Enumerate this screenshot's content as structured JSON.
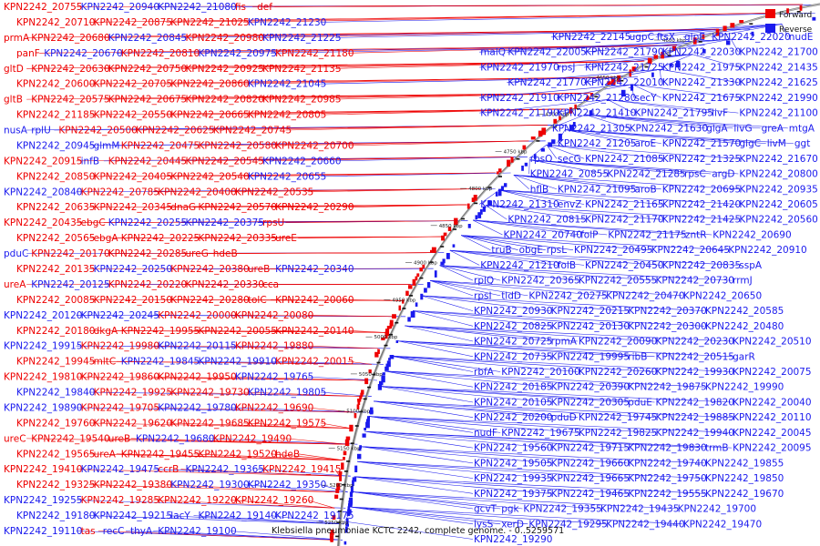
{
  "caption": "Klebsiella pneumoniae KCTC 2242, complete genome. - 0..5259571",
  "legend": [
    {
      "label": "Forward",
      "color": "#ee0000"
    },
    {
      "label": "Reverse",
      "color": "#1a1aee"
    }
  ],
  "colors": {
    "forward": "#ee0000",
    "reverse": "#1a1aee",
    "backbone": "#7a7a7a"
  },
  "scale_ticks": [
    "4600 kbp",
    "4650 kbp",
    "4700 kbp",
    "4750 kbp",
    "4800 kbp",
    "4850 kbp",
    "4900 kbp",
    "4950 kbp",
    "5000 kbp",
    "5050 kbp",
    "5100 kbp",
    "5150 kbp",
    "5200 kbp",
    "5250 kbp"
  ],
  "left_labels": [
    {
      "t": "KPN2242_20755",
      "c": "f"
    },
    {
      "t": "KPN2242_20940",
      "c": "r"
    },
    {
      "t": "KPN2242_21080",
      "c": "r"
    },
    {
      "t": "fis",
      "c": "f"
    },
    {
      "t": "def",
      "c": "f"
    },
    {
      "t": "KPN2242_20710",
      "c": "f"
    },
    {
      "t": "KPN2242_20875",
      "c": "f"
    },
    {
      "t": "KPN2242_21025",
      "c": "f"
    },
    {
      "t": "KPN2242_21230",
      "c": "r"
    },
    {
      "t": "prmA",
      "c": "f"
    },
    {
      "t": "KPN2242_20680",
      "c": "f"
    },
    {
      "t": "KPN2242_20845",
      "c": "r"
    },
    {
      "t": "KPN2242_20980",
      "c": "f"
    },
    {
      "t": "KPN2242_21225",
      "c": "r"
    },
    {
      "t": "panF",
      "c": "f"
    },
    {
      "t": "KPN2242_20670",
      "c": "r"
    },
    {
      "t": "KPN2242_20810",
      "c": "f"
    },
    {
      "t": "KPN2242_20975",
      "c": "r"
    },
    {
      "t": "KPN2242_21180",
      "c": "f"
    },
    {
      "t": "gltD",
      "c": "f"
    },
    {
      "t": "KPN2242_20630",
      "c": "f"
    },
    {
      "t": "KPN2242_20750",
      "c": "f"
    },
    {
      "t": "KPN2242_20925",
      "c": "f"
    },
    {
      "t": "KPN2242_21135",
      "c": "f"
    },
    {
      "t": "KPN2242_20600",
      "c": "f"
    },
    {
      "t": "KPN2242_20705",
      "c": "f"
    },
    {
      "t": "KPN2242_20860",
      "c": "f"
    },
    {
      "t": "KPN2242_21045",
      "c": "r"
    },
    {
      "t": "gltB",
      "c": "f"
    },
    {
      "t": "KPN2242_20575",
      "c": "f"
    },
    {
      "t": "KPN2242_20675",
      "c": "f"
    },
    {
      "t": "KPN2242_20820",
      "c": "f"
    },
    {
      "t": "KPN2242_20985",
      "c": "f"
    },
    {
      "t": "KPN2242_21185",
      "c": "f"
    },
    {
      "t": "KPN2242_20550",
      "c": "f"
    },
    {
      "t": "KPN2242_20665",
      "c": "f"
    },
    {
      "t": "KPN2242_20805",
      "c": "f"
    },
    {
      "t": "nusA",
      "c": "r"
    },
    {
      "t": "rplU",
      "c": "r"
    },
    {
      "t": "KPN2242_20500",
      "c": "f"
    },
    {
      "t": "KPN2242_20625",
      "c": "f"
    },
    {
      "t": "KPN2242_20745",
      "c": "f"
    },
    {
      "t": "KPN2242_20945",
      "c": "r"
    },
    {
      "t": "glmM",
      "c": "r"
    },
    {
      "t": "KPN2242_20475",
      "c": "f"
    },
    {
      "t": "KPN2242_20580",
      "c": "f"
    },
    {
      "t": "KPN2242_20700",
      "c": "f"
    },
    {
      "t": "KPN2242_20915",
      "c": "f"
    },
    {
      "t": "infB",
      "c": "r"
    },
    {
      "t": "KPN2242_20445",
      "c": "f"
    },
    {
      "t": "KPN2242_20545",
      "c": "f"
    },
    {
      "t": "KPN2242_20660",
      "c": "r"
    },
    {
      "t": "KPN2242_20850",
      "c": "f"
    },
    {
      "t": "KPN2242_20405",
      "c": "f"
    },
    {
      "t": "KPN2242_20540",
      "c": "f"
    },
    {
      "t": "KPN2242_20655",
      "c": "r"
    },
    {
      "t": "KPN2242_20840",
      "c": "r"
    },
    {
      "t": "KPN2242_20785",
      "c": "f"
    },
    {
      "t": "KPN2242_20400",
      "c": "f"
    },
    {
      "t": "KPN2242_20535",
      "c": "f"
    },
    {
      "t": "KPN2242_20635",
      "c": "f"
    },
    {
      "t": "KPN2242_20345",
      "c": "f"
    },
    {
      "t": "dnaG",
      "c": "f"
    },
    {
      "t": "KPN2242_20570",
      "c": "f"
    },
    {
      "t": "KPN2242_20290",
      "c": "f"
    },
    {
      "t": "KPN2242_20435",
      "c": "f"
    },
    {
      "t": "ebgC",
      "c": "f"
    },
    {
      "t": "KPN2242_20255",
      "c": "r"
    },
    {
      "t": "KPN2242_20375",
      "c": "r"
    },
    {
      "t": "rpsU",
      "c": "f"
    },
    {
      "t": "KPN2242_20565",
      "c": "f"
    },
    {
      "t": "ebgA",
      "c": "f"
    },
    {
      "t": "KPN2242_20225",
      "c": "f"
    },
    {
      "t": "KPN2242_20335",
      "c": "f"
    },
    {
      "t": "ureE",
      "c": "f"
    },
    {
      "t": "pduC",
      "c": "r"
    },
    {
      "t": "KPN2242_20170",
      "c": "f"
    },
    {
      "t": "KPN2242_20285",
      "c": "f"
    },
    {
      "t": "ureG",
      "c": "f"
    },
    {
      "t": "hdeB",
      "c": "f"
    },
    {
      "t": "KPN2242_20135",
      "c": "f"
    },
    {
      "t": "KPN2242_20250",
      "c": "r"
    },
    {
      "t": "KPN2242_20380",
      "c": "f"
    },
    {
      "t": "ureB",
      "c": "f"
    },
    {
      "t": "KPN2242_20340",
      "c": "r"
    },
    {
      "t": "ureA",
      "c": "f"
    },
    {
      "t": "KPN2242_20125",
      "c": "r"
    },
    {
      "t": "KPN2242_20220",
      "c": "f"
    },
    {
      "t": "KPN2242_20330",
      "c": "f"
    },
    {
      "t": "cca",
      "c": "f"
    },
    {
      "t": "KPN2242_20085",
      "c": "f"
    },
    {
      "t": "KPN2242_20150",
      "c": "f"
    },
    {
      "t": "KPN2242_20280",
      "c": "f"
    },
    {
      "t": "tolC",
      "c": "f"
    },
    {
      "t": "KPN2242_20060",
      "c": "f"
    },
    {
      "t": "KPN2242_20120",
      "c": "r"
    },
    {
      "t": "KPN2242_20245",
      "c": "r"
    },
    {
      "t": "KPN2242_20000",
      "c": "f"
    },
    {
      "t": "KPN2242_20080",
      "c": "f"
    },
    {
      "t": "KPN2242_20180",
      "c": "f"
    },
    {
      "t": "dkgA",
      "c": "f"
    },
    {
      "t": "KPN2242_19955",
      "c": "f"
    },
    {
      "t": "KPN2242_20055",
      "c": "f"
    },
    {
      "t": "KPN2242_20140",
      "c": "f"
    },
    {
      "t": "KPN2242_19915",
      "c": "r"
    },
    {
      "t": "KPN2242_19980",
      "c": "f"
    },
    {
      "t": "KPN2242_20115",
      "c": "r"
    },
    {
      "t": "KPN2242_19880",
      "c": "f"
    },
    {
      "t": "KPN2242_19945",
      "c": "f"
    },
    {
      "t": "mltC",
      "c": "f"
    },
    {
      "t": "KPN2242_19845",
      "c": "r"
    },
    {
      "t": "KPN2242_19910",
      "c": "r"
    },
    {
      "t": "KPN2242_20015",
      "c": "f"
    },
    {
      "t": "KPN2242_19810",
      "c": "f"
    },
    {
      "t": "KPN2242_19860",
      "c": "f"
    },
    {
      "t": "KPN2242_19950",
      "c": "f"
    },
    {
      "t": "KPN2242_19765",
      "c": "r"
    },
    {
      "t": "KPN2242_19840",
      "c": "r"
    },
    {
      "t": "KPN2242_19925",
      "c": "f"
    },
    {
      "t": "KPN2242_19730",
      "c": "f"
    },
    {
      "t": "KPN2242_19805",
      "c": "r"
    },
    {
      "t": "KPN2242_19890",
      "c": "r"
    },
    {
      "t": "KPN2242_19705",
      "c": "f"
    },
    {
      "t": "KPN2242_19780",
      "c": "r"
    },
    {
      "t": "KPN2242_19690",
      "c": "f"
    },
    {
      "t": "KPN2242_19760",
      "c": "f"
    },
    {
      "t": "KPN2242_19620",
      "c": "f"
    },
    {
      "t": "KPN2242_19685",
      "c": "f"
    },
    {
      "t": "KPN2242_19575",
      "c": "f"
    },
    {
      "t": "ureC",
      "c": "f"
    },
    {
      "t": "KPN2242_19540",
      "c": "f"
    },
    {
      "t": "ureB",
      "c": "f"
    },
    {
      "t": "KPN2242_19680",
      "c": "r"
    },
    {
      "t": "KPN2242_19490",
      "c": "f"
    },
    {
      "t": "KPN2242_19565",
      "c": "f"
    },
    {
      "t": "ureA",
      "c": "f"
    },
    {
      "t": "KPN2242_19455",
      "c": "f"
    },
    {
      "t": "KPN2242_19520",
      "c": "f"
    },
    {
      "t": "hdeB",
      "c": "f"
    },
    {
      "t": "KPN2242_19410",
      "c": "f"
    },
    {
      "t": "KPN2242_19475",
      "c": "r"
    },
    {
      "t": "ccrB",
      "c": "f"
    },
    {
      "t": "KPN2242_19365",
      "c": "r"
    },
    {
      "t": "KPN2242_19415",
      "c": "f"
    },
    {
      "t": "KPN2242_19325",
      "c": "f"
    },
    {
      "t": "KPN2242_19380",
      "c": "f"
    },
    {
      "t": "KPN2242_19300",
      "c": "r"
    },
    {
      "t": "KPN2242_19350",
      "c": "r"
    },
    {
      "t": "KPN2242_19255",
      "c": "r"
    },
    {
      "t": "KPN2242_19285",
      "c": "f"
    },
    {
      "t": "KPN2242_19220",
      "c": "f"
    },
    {
      "t": "KPN2242_19260",
      "c": "f"
    },
    {
      "t": "KPN2242_19180",
      "c": "r"
    },
    {
      "t": "KPN2242_19215",
      "c": "r"
    },
    {
      "t": "lacY",
      "c": "r"
    },
    {
      "t": "KPN2242_19140",
      "c": "r"
    },
    {
      "t": "KPN2242_19175",
      "c": "r"
    },
    {
      "t": "KPN2242_19110",
      "c": "r"
    },
    {
      "t": "tas",
      "c": "f"
    },
    {
      "t": "recC",
      "c": "r"
    },
    {
      "t": "thyA",
      "c": "r"
    },
    {
      "t": "KPN2242_19100",
      "c": "r"
    }
  ],
  "right_labels": [
    {
      "t": "KPN2242_22145"
    },
    {
      "t": "ugpC"
    },
    {
      "t": "ftsX"
    },
    {
      "t": "glpE"
    },
    {
      "t": "KPN2242_22020"
    },
    {
      "t": "nudE"
    },
    {
      "t": "malQ"
    },
    {
      "t": "KPN2242_22005"
    },
    {
      "t": "KPN2242_21790"
    },
    {
      "t": "KPN2242_22030"
    },
    {
      "t": "KPN2242_21700"
    },
    {
      "t": "KPN2242_21970"
    },
    {
      "t": "rpsJ"
    },
    {
      "t": "KPN2242_21725"
    },
    {
      "t": "KPN2242_21975"
    },
    {
      "t": "KPN2242_21435"
    },
    {
      "t": "KPN2242_21770"
    },
    {
      "t": "KPN2242_22010"
    },
    {
      "t": "KPN2242_21330"
    },
    {
      "t": "KPN2242_21625"
    },
    {
      "t": "KPN2242_21910"
    },
    {
      "t": "KPN2242_21280"
    },
    {
      "t": "secY"
    },
    {
      "t": "KPN2242_21675"
    },
    {
      "t": "KPN2242_21990"
    },
    {
      "t": "KPN2242_21190"
    },
    {
      "t": "KPN2242_21410"
    },
    {
      "t": "KPN2242_21795"
    },
    {
      "t": "livF"
    },
    {
      "t": "KPN2242_21100"
    },
    {
      "t": "KPN2242_21305"
    },
    {
      "t": "KPN2242_21630"
    },
    {
      "t": "glgA"
    },
    {
      "t": "livG"
    },
    {
      "t": "greA"
    },
    {
      "t": "mtgA"
    },
    {
      "t": "KPN2242_21205"
    },
    {
      "t": "aroE"
    },
    {
      "t": "KPN2242_21570"
    },
    {
      "t": "glgC"
    },
    {
      "t": "livM"
    },
    {
      "t": "ggt"
    },
    {
      "t": "rpsO"
    },
    {
      "t": "secG"
    },
    {
      "t": "KPN2242_21085"
    },
    {
      "t": "KPN2242_21325"
    },
    {
      "t": "KPN2242_21670"
    },
    {
      "t": "KPN2242_20855"
    },
    {
      "t": "KPN2242_21285"
    },
    {
      "t": "rpsC"
    },
    {
      "t": "argD"
    },
    {
      "t": "KPN2242_20800"
    },
    {
      "t": "hflB"
    },
    {
      "t": "KPN2242_21095"
    },
    {
      "t": "aroB"
    },
    {
      "t": "KPN2242_20695"
    },
    {
      "t": "KPN2242_20935"
    },
    {
      "t": "KPN2242_21310"
    },
    {
      "t": "envZ"
    },
    {
      "t": "KPN2242_21165"
    },
    {
      "t": "KPN2242_21420"
    },
    {
      "t": "KPN2242_20605"
    },
    {
      "t": "KPN2242_20815"
    },
    {
      "t": "KPN2242_21170"
    },
    {
      "t": "KPN2242_21425"
    },
    {
      "t": "KPN2242_20560"
    },
    {
      "t": "KPN2242_20740"
    },
    {
      "t": "folP"
    },
    {
      "t": "KPN2242_21175"
    },
    {
      "t": "zntR"
    },
    {
      "t": "KPN2242_20690"
    },
    {
      "t": "truB"
    },
    {
      "t": "obgE"
    },
    {
      "t": "rpsL"
    },
    {
      "t": "KPN2242_20495"
    },
    {
      "t": "KPN2242_20645"
    },
    {
      "t": "KPN2242_20910"
    },
    {
      "t": "KPN2242_21210"
    },
    {
      "t": "folB"
    },
    {
      "t": "KPN2242_20450"
    },
    {
      "t": "KPN2242_20835"
    },
    {
      "t": "sspA"
    },
    {
      "t": "rplQ"
    },
    {
      "t": "KPN2242_20365"
    },
    {
      "t": "KPN2242_20555"
    },
    {
      "t": "KPN2242_20730"
    },
    {
      "t": "rrmJ"
    },
    {
      "t": "rpsI"
    },
    {
      "t": "tldD"
    },
    {
      "t": "KPN2242_20275"
    },
    {
      "t": "KPN2242_20470"
    },
    {
      "t": "KPN2242_20650"
    },
    {
      "t": "KPN2242_20930"
    },
    {
      "t": "KPN2242_20215"
    },
    {
      "t": "KPN2242_20370"
    },
    {
      "t": "KPN2242_20585"
    },
    {
      "t": "KPN2242_20825"
    },
    {
      "t": "KPN2242_20130"
    },
    {
      "t": "KPN2242_20300"
    },
    {
      "t": "KPN2242_20480"
    },
    {
      "t": "KPN2242_20725"
    },
    {
      "t": "rpmA"
    },
    {
      "t": "KPN2242_20090"
    },
    {
      "t": "KPN2242_20230"
    },
    {
      "t": "KPN2242_20510"
    },
    {
      "t": "KPN2242_20735"
    },
    {
      "t": "KPN2242_19995"
    },
    {
      "t": "ribB"
    },
    {
      "t": "KPN2242_20515"
    },
    {
      "t": "garR"
    },
    {
      "t": "rbfA"
    },
    {
      "t": "KPN2242_20100"
    },
    {
      "t": "KPN2242_20260"
    },
    {
      "t": "KPN2242_19930"
    },
    {
      "t": "KPN2242_20075"
    },
    {
      "t": "KPN2242_20185"
    },
    {
      "t": "KPN2242_20390"
    },
    {
      "t": "KPN2242_19875"
    },
    {
      "t": "KPN2242_19990"
    },
    {
      "t": "KPN2242_20105"
    },
    {
      "t": "KPN2242_20305"
    },
    {
      "t": "pduE"
    },
    {
      "t": "KPN2242_19820"
    },
    {
      "t": "KPN2242_20040"
    },
    {
      "t": "KPN2242_20200"
    },
    {
      "t": "pduD"
    },
    {
      "t": "KPN2242_19745"
    },
    {
      "t": "KPN2242_19885"
    },
    {
      "t": "KPN2242_20110"
    },
    {
      "t": "nudF"
    },
    {
      "t": "KPN2242_19675"
    },
    {
      "t": "KPN2242_19825"
    },
    {
      "t": "KPN2242_19940"
    },
    {
      "t": "KPN2242_20045"
    },
    {
      "t": "KPN2242_19560"
    },
    {
      "t": "KPN2242_19715"
    },
    {
      "t": "KPN2242_19830"
    },
    {
      "t": "trmB"
    },
    {
      "t": "KPN2242_20095"
    },
    {
      "t": "KPN2242_19505"
    },
    {
      "t": "KPN2242_19660"
    },
    {
      "t": "KPN2242_19740"
    },
    {
      "t": "KPN2242_19855"
    },
    {
      "t": "KPN2242_19935"
    },
    {
      "t": "KPN2242_19665"
    },
    {
      "t": "KPN2242_19750"
    },
    {
      "t": "KPN2242_19850"
    },
    {
      "t": "KPN2242_19375"
    },
    {
      "t": "KPN2242_19465"
    },
    {
      "t": "KPN2242_19555"
    },
    {
      "t": "KPN2242_19670"
    },
    {
      "t": "gcvT"
    },
    {
      "t": "pgk"
    },
    {
      "t": "KPN2242_19355"
    },
    {
      "t": "KPN2242_19435"
    },
    {
      "t": "KPN2242_19700"
    },
    {
      "t": "lysS"
    },
    {
      "t": "xerD"
    },
    {
      "t": "KPN2242_19295"
    },
    {
      "t": "KPN2242_19440"
    },
    {
      "t": "KPN2242_19470"
    },
    {
      "t": "KPN2242_19290"
    }
  ]
}
